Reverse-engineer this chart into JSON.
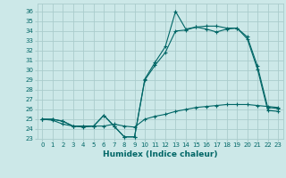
{
  "xlabel": "Humidex (Indice chaleur)",
  "bg_color": "#cce8e8",
  "grid_color": "#aacccc",
  "line_color": "#006666",
  "xlim": [
    -0.5,
    23.5
  ],
  "ylim": [
    23,
    36.8
  ],
  "xticks": [
    0,
    1,
    2,
    3,
    4,
    5,
    6,
    7,
    8,
    9,
    10,
    11,
    12,
    13,
    14,
    15,
    16,
    17,
    18,
    19,
    20,
    21,
    22,
    23
  ],
  "yticks": [
    23,
    24,
    25,
    26,
    27,
    28,
    29,
    30,
    31,
    32,
    33,
    34,
    35,
    36
  ],
  "line1_x": [
    0,
    1,
    2,
    3,
    4,
    5,
    6,
    7,
    8,
    9,
    10,
    11,
    12,
    13,
    14,
    15,
    16,
    17,
    18,
    19,
    20,
    21,
    22,
    23
  ],
  "line1_y": [
    25.0,
    25.0,
    24.8,
    24.3,
    24.3,
    24.3,
    25.4,
    24.3,
    23.2,
    23.2,
    29.1,
    30.8,
    32.4,
    36.0,
    34.2,
    34.4,
    34.5,
    34.5,
    34.3,
    34.3,
    33.4,
    30.4,
    26.2,
    26.1
  ],
  "line2_x": [
    0,
    1,
    2,
    3,
    4,
    5,
    6,
    7,
    8,
    9,
    10,
    11,
    12,
    13,
    14,
    15,
    16,
    17,
    18,
    19,
    20,
    21,
    22,
    23
  ],
  "line2_y": [
    25.0,
    25.0,
    24.8,
    24.3,
    24.3,
    24.3,
    25.4,
    24.3,
    23.2,
    23.2,
    29.0,
    30.5,
    31.8,
    34.0,
    34.1,
    34.4,
    34.2,
    33.9,
    34.2,
    34.3,
    33.2,
    30.1,
    25.9,
    25.8
  ],
  "line3_x": [
    0,
    1,
    2,
    3,
    4,
    5,
    6,
    7,
    8,
    9,
    10,
    11,
    12,
    13,
    14,
    15,
    16,
    17,
    18,
    19,
    20,
    21,
    22,
    23
  ],
  "line3_y": [
    25.0,
    24.9,
    24.5,
    24.3,
    24.2,
    24.3,
    24.3,
    24.5,
    24.3,
    24.2,
    25.0,
    25.3,
    25.5,
    25.8,
    26.0,
    26.2,
    26.3,
    26.4,
    26.5,
    26.5,
    26.5,
    26.4,
    26.3,
    26.2
  ],
  "tick_fontsize": 5.0,
  "xlabel_fontsize": 6.5
}
